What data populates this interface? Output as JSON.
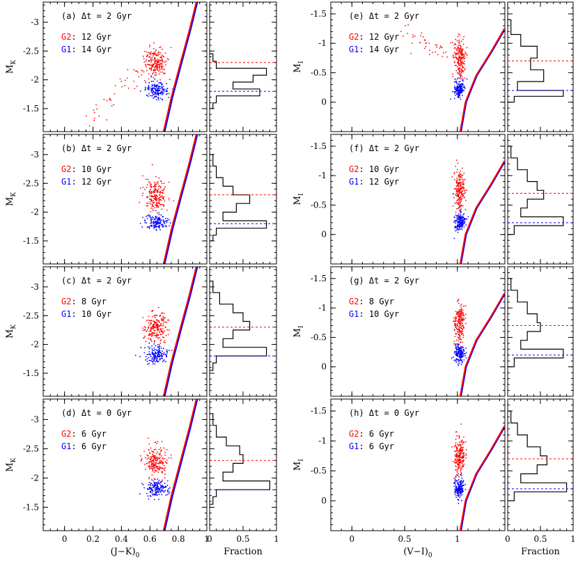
{
  "chart_data": {
    "type": "scatter",
    "description": "Color-magnitude diagrams of red clump stars for two populations (G1 blue, G2 red) with age offset; companion histograms of fraction vs magnitude.",
    "colors": {
      "G1": "#0000ff",
      "G2": "#ff0000",
      "axes": "#000000"
    },
    "left_column": {
      "xlabel": "(J−K)",
      "xlabel_sub": "0",
      "ylabel": "M",
      "ylabel_sub": "K",
      "xlim": [
        -0.15,
        1.0
      ],
      "ylim": [
        -1.1,
        -3.35
      ],
      "xticks": [
        "0",
        "0.2",
        "0.4",
        "0.6",
        "0.8",
        "1"
      ],
      "yticks": [
        "-3",
        "-2.5",
        "-2",
        "-1.5"
      ],
      "iso_x": [
        0.7,
        0.755,
        0.82,
        0.88,
        0.93
      ],
      "iso_y": [
        -1.1,
        -1.7,
        -2.3,
        -2.85,
        -3.35
      ],
      "clump_g1": {
        "cx": 0.65,
        "cy": -1.82,
        "sx": 0.04,
        "sy": 0.09
      },
      "clump_g2": {
        "cx": 0.64,
        "cy": -2.3,
        "sx": 0.04,
        "sy": 0.13
      }
    },
    "right_column": {
      "xlabel": "(V−I)",
      "xlabel_sub": "0",
      "ylabel": "M",
      "ylabel_sub": "I",
      "xlim": [
        -0.2,
        1.45
      ],
      "ylim": [
        0.5,
        -1.7
      ],
      "xticks": [
        "0",
        "0.5",
        "1"
      ],
      "yticks": [
        "-1.5",
        "-1",
        "-0.5",
        "0"
      ],
      "iso_x": [
        1.03,
        1.08,
        1.18,
        1.32,
        1.45
      ],
      "iso_y": [
        0.5,
        0.0,
        -0.45,
        -0.85,
        -1.25
      ],
      "clump_g1": {
        "cx": 1.02,
        "cy": -0.22,
        "sx": 0.025,
        "sy": 0.1
      },
      "clump_g2": {
        "cx": 1.02,
        "cy": -0.75,
        "sx": 0.025,
        "sy": 0.17
      }
    },
    "fraction_axis": {
      "xlabel": "Fraction",
      "xlim": [
        0,
        1
      ],
      "xticks": [
        "0",
        "0.5",
        "1"
      ]
    },
    "panels": [
      {
        "id": "a",
        "label": "(a) Δt = 2 Gyr",
        "g2": "G2: 12 Gyr",
        "g1": "G1: 14 Gyr",
        "g2_mag": -2.3,
        "g1_mag": -1.8,
        "hist": [
          0.05,
          0.1,
          0.85,
          0.65,
          0.35,
          0.75,
          0.1,
          0.05
        ],
        "hist_edges": [
          -2.45,
          -2.32,
          -2.2,
          -2.08,
          -1.96,
          -1.84,
          -1.72,
          -1.6,
          -1.5
        ]
      },
      {
        "id": "b",
        "label": "(b) Δt = 2 Gyr",
        "g2": "G2: 10 Gyr",
        "g1": "G1: 12 Gyr",
        "g2_mag": -2.3,
        "g1_mag": -1.8,
        "hist": [
          0.05,
          0.1,
          0.2,
          0.35,
          0.6,
          0.4,
          0.2,
          0.85,
          0.1,
          0.05
        ],
        "hist_edges": [
          -3.0,
          -2.8,
          -2.6,
          -2.45,
          -2.3,
          -2.15,
          -2.0,
          -1.85,
          -1.72,
          -1.6,
          -1.5
        ]
      },
      {
        "id": "c",
        "label": "(c) Δt = 2 Gyr",
        "g2": "G2:  8 Gyr",
        "g1": "G1: 10 Gyr",
        "g2_mag": -2.3,
        "g1_mag": -1.8,
        "hist": [
          0.05,
          0.15,
          0.35,
          0.5,
          0.6,
          0.35,
          0.2,
          0.85,
          0.1,
          0.05
        ],
        "hist_edges": [
          -3.1,
          -2.9,
          -2.7,
          -2.55,
          -2.4,
          -2.25,
          -2.1,
          -1.95,
          -1.8,
          -1.68,
          -1.55
        ]
      },
      {
        "id": "d",
        "label": "(d) Δt = 0 Gyr",
        "g2": "G2: 6 Gyr",
        "g1": "G1: 6 Gyr",
        "g2_mag": -2.3,
        "g1_mag": -1.8,
        "hist": [
          0.05,
          0.1,
          0.25,
          0.45,
          0.5,
          0.35,
          0.2,
          0.9,
          0.1,
          0.05
        ],
        "hist_edges": [
          -3.1,
          -2.9,
          -2.7,
          -2.55,
          -2.4,
          -2.25,
          -2.1,
          -1.95,
          -1.8,
          -1.68,
          -1.55
        ]
      },
      {
        "id": "e",
        "label": "(e) Δt = 2 Gyr",
        "g2": "G2: 12 Gyr",
        "g1": "G1: 14 Gyr",
        "g2_mag": -0.7,
        "g1_mag": -0.2,
        "hist": [
          0.05,
          0.2,
          0.45,
          0.35,
          0.55,
          0.15,
          0.85,
          0.1
        ],
        "hist_edges": [
          -1.4,
          -1.15,
          -0.95,
          -0.75,
          -0.55,
          -0.35,
          -0.2,
          -0.1,
          0.0
        ]
      },
      {
        "id": "f",
        "label": "(f) Δt = 2 Gyr",
        "g2": "G2: 10 Gyr",
        "g1": "G1: 12 Gyr",
        "g2_mag": -0.7,
        "g1_mag": -0.2,
        "hist": [
          0.05,
          0.15,
          0.3,
          0.45,
          0.55,
          0.3,
          0.2,
          0.85,
          0.1
        ],
        "hist_edges": [
          -1.5,
          -1.3,
          -1.1,
          -0.9,
          -0.75,
          -0.6,
          -0.45,
          -0.3,
          -0.15,
          0.0
        ]
      },
      {
        "id": "g",
        "label": "(g) Δt = 2 Gyr",
        "g2": "G2:  8 Gyr",
        "g1": "G1: 10 Gyr",
        "g2_mag": -0.7,
        "g1_mag": -0.2,
        "hist": [
          0.05,
          0.15,
          0.3,
          0.45,
          0.5,
          0.3,
          0.2,
          0.85,
          0.1
        ],
        "hist_edges": [
          -1.5,
          -1.3,
          -1.1,
          -0.9,
          -0.75,
          -0.6,
          -0.45,
          -0.3,
          -0.15,
          0.0
        ]
      },
      {
        "id": "h",
        "label": "(h) Δt = 0 Gyr",
        "g2": "G2: 6 Gyr",
        "g1": "G1: 6 Gyr",
        "g2_mag": -0.7,
        "g1_mag": -0.2,
        "hist": [
          0.05,
          0.15,
          0.3,
          0.5,
          0.6,
          0.45,
          0.2,
          0.9,
          0.1
        ],
        "hist_edges": [
          -1.5,
          -1.3,
          -1.1,
          -0.9,
          -0.75,
          -0.6,
          -0.45,
          -0.3,
          -0.15,
          0.0
        ]
      }
    ]
  }
}
